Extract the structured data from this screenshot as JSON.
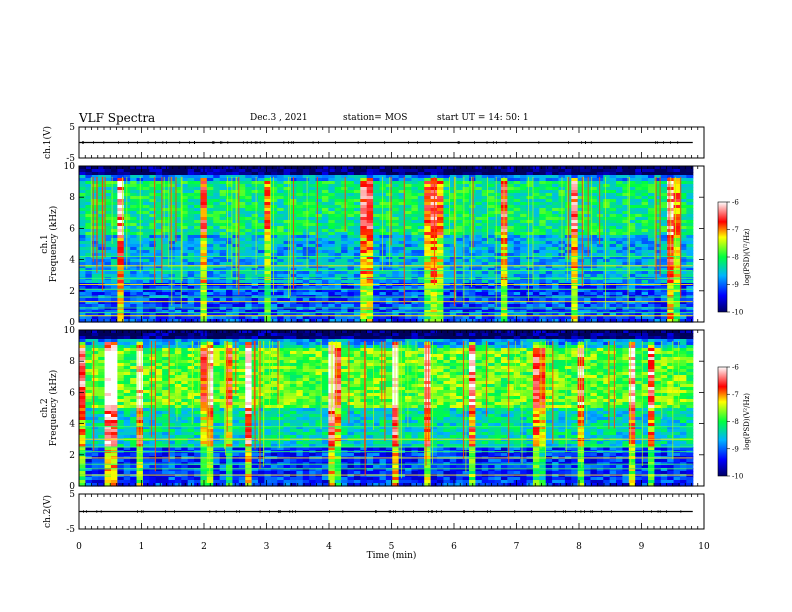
{
  "header": {
    "title": "VLF Spectra",
    "date": "Dec.3 , 2021",
    "station": "station= MOS",
    "start": "start UT = 14: 50: 1"
  },
  "chart_data": [
    {
      "type": "line",
      "panel": "ch1-voltage",
      "ylabel": "ch.1(V)",
      "ylim": [
        -5,
        5
      ],
      "yticks": [
        "5",
        "-5"
      ],
      "xlim": [
        0,
        10
      ],
      "series": [
        {
          "x": [
            0,
            9.82
          ],
          "y": [
            0,
            0
          ]
        }
      ]
    },
    {
      "type": "heatmap",
      "panel": "ch1-spectrogram",
      "ylabel": "ch.1\nFrequency (kHz)",
      "ylim": [
        0,
        10
      ],
      "yticks": [
        "0",
        "2",
        "4",
        "6",
        "8",
        "10"
      ],
      "xlim": [
        0,
        10
      ],
      "colorbar": {
        "label": "log(PSD)(V²/Hz)",
        "range": [
          -10,
          -6
        ],
        "ticks": [
          "-6",
          "-7",
          "-8",
          "-9",
          "-10"
        ]
      }
    },
    {
      "type": "heatmap",
      "panel": "ch2-spectrogram",
      "ylabel": "ch.2\nFrequency (kHz)",
      "ylim": [
        0,
        10
      ],
      "yticks": [
        "0",
        "2",
        "4",
        "6",
        "8",
        "10"
      ],
      "xlim": [
        0,
        10
      ],
      "colorbar": {
        "label": "log(PSD)(V²/Hz)",
        "range": [
          -10,
          -6
        ],
        "ticks": [
          "-6",
          "-7",
          "-8",
          "-9",
          "-10"
        ]
      }
    },
    {
      "type": "line",
      "panel": "ch2-voltage",
      "ylabel": "ch.2(V)",
      "ylim": [
        -5,
        5
      ],
      "yticks": [
        "5",
        "-5"
      ],
      "xlim": [
        0,
        10
      ],
      "xticks": [
        "0",
        "1",
        "2",
        "3",
        "4",
        "5",
        "6",
        "7",
        "8",
        "9",
        "10"
      ],
      "xlabel": "Time (min)",
      "series": [
        {
          "x": [
            0,
            9.82
          ],
          "y": [
            0,
            0
          ]
        }
      ]
    }
  ]
}
